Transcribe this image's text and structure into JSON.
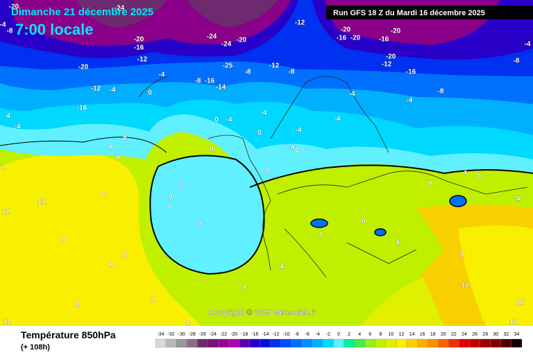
{
  "header": {
    "date": "Dimanche 21 décembre 2025",
    "time": "7:00 locale",
    "run": "Run GFS 18 Z du Mardi 16 décembre 2025"
  },
  "copyright": "Copyright © 2025 Meteociel.fr",
  "legend": {
    "title": "Température 850hPa",
    "lead": "(+ 108h)",
    "scale": [
      {
        "value": -34,
        "color": "#d8d8d8"
      },
      {
        "value": -32,
        "color": "#b8b8b8"
      },
      {
        "value": -30,
        "color": "#989898"
      },
      {
        "value": -28,
        "color": "#8c6c8c"
      },
      {
        "value": -26,
        "color": "#6e2a6e"
      },
      {
        "value": -24,
        "color": "#7a1078"
      },
      {
        "value": -22,
        "color": "#9a0098"
      },
      {
        "value": -20,
        "color": "#b000b8"
      },
      {
        "value": -18,
        "color": "#5a00a8"
      },
      {
        "value": -16,
        "color": "#2800c8"
      },
      {
        "value": -14,
        "color": "#0010e0"
      },
      {
        "value": -12,
        "color": "#0030f0"
      },
      {
        "value": -10,
        "color": "#0050ff"
      },
      {
        "value": -8,
        "color": "#0070ff"
      },
      {
        "value": -6,
        "color": "#0090ff"
      },
      {
        "value": -4,
        "color": "#00b0ff"
      },
      {
        "value": -2,
        "color": "#00d8ff"
      },
      {
        "value": 0,
        "color": "#60f0ff"
      },
      {
        "value": 2,
        "color": "#00f0a0"
      },
      {
        "value": 4,
        "color": "#40f040"
      },
      {
        "value": 6,
        "color": "#90f020"
      },
      {
        "value": 8,
        "color": "#c0f000"
      },
      {
        "value": 10,
        "color": "#e0f000"
      },
      {
        "value": 12,
        "color": "#f8f000"
      },
      {
        "value": 14,
        "color": "#f8d000"
      },
      {
        "value": 16,
        "color": "#f8b000"
      },
      {
        "value": 18,
        "color": "#f89000"
      },
      {
        "value": 20,
        "color": "#f86000"
      },
      {
        "value": 22,
        "color": "#f03000"
      },
      {
        "value": 24,
        "color": "#e00000"
      },
      {
        "value": 26,
        "color": "#c00000"
      },
      {
        "value": 28,
        "color": "#a00000"
      },
      {
        "value": 30,
        "color": "#800000"
      },
      {
        "value": 32,
        "color": "#500000"
      },
      {
        "value": 34,
        "color": "#100000"
      }
    ]
  },
  "map": {
    "contour_labels": [
      -20,
      -24,
      -4,
      -8,
      -20,
      -16,
      -20,
      -12,
      -12,
      -4,
      -16,
      -4,
      0,
      -24,
      -24,
      -20,
      -25,
      -8,
      -16,
      -14,
      -8,
      -12,
      -8,
      -12,
      -20,
      -20,
      -16,
      -20,
      -16,
      -20,
      -12,
      -16,
      -8,
      -4,
      -4,
      -8,
      -4,
      -4,
      0,
      -4,
      0,
      -4,
      -4,
      -4,
      0,
      0,
      0,
      4,
      -4,
      8,
      8,
      8,
      2,
      12,
      12,
      8,
      0,
      0,
      0,
      0,
      8,
      4,
      0,
      -4,
      8,
      8,
      8,
      4,
      4,
      4,
      4,
      16,
      12,
      12,
      8,
      12,
      8,
      4,
      4,
      0
    ]
  }
}
